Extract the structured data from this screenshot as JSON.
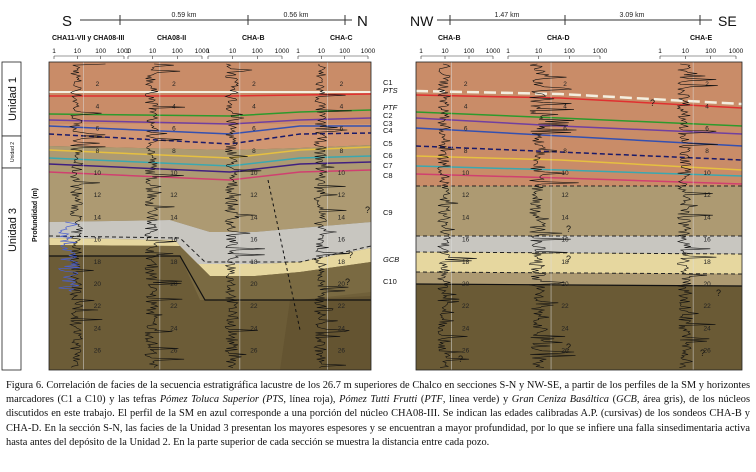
{
  "panels": {
    "sn": {
      "dir_left": "S",
      "dir_right": "N",
      "distances": [
        "0.59 km",
        "0.56 km"
      ],
      "wells": [
        "CHA11-VII y CHA08-III",
        "CHA08-II",
        "CHA-B",
        "CHA-C"
      ]
    },
    "nwse": {
      "dir_left": "NW",
      "dir_right": "SE",
      "distances": [
        "1.47 km",
        "3.09 km"
      ],
      "wells": [
        "CHA-B",
        "CHA-D",
        "CHA-E"
      ]
    }
  },
  "ms_scale_ticks": [
    "1",
    "10",
    "100",
    "1000"
  ],
  "depth_ticks": [
    "2",
    "4",
    "6",
    "8",
    "10",
    "12",
    "14",
    "16",
    "18",
    "20",
    "22",
    "24",
    "26"
  ],
  "units": {
    "unidad1": "Unidad 1",
    "unidad2": "Unidad 2",
    "unidad3": "Unidad 3",
    "depth_axis": "Profundidad (m)"
  },
  "marker_labels": [
    "C1",
    "PTS",
    "PTF",
    "C2",
    "C3",
    "C4",
    "C5",
    "C6",
    "C7",
    "C8",
    "C9",
    "GCB",
    "C10"
  ],
  "question_mark": "?",
  "colors": {
    "unit1": "#c98c68",
    "unit2": "#d19672",
    "unit3_light": "#ad9a72",
    "unit3_dark": "#70603a",
    "yellow": "#e6d79f",
    "grey": "#c8c6c0",
    "pts_line": "#e03030",
    "ptf_line": "#2d9a2d",
    "white_line": "#f4efe0",
    "ms_trace": "#111111",
    "ms_blue": "#4a5fd0"
  },
  "caption": {
    "p1": "Figura 6. Correlación de facies de la secuencia estratigráfica lacustre de los 26.7 m superiores de Chalco en secciones S-N y NW-SE, a partir de los perfiles de la SM y horizontes marcadores (C1 a C10) y las tefras ",
    "i1": "Pómez Toluca Superior (PTS",
    "p2": ", línea roja), ",
    "i2": "Pómez Tutti Frutti",
    "p3": " (",
    "i3": "PTF",
    "p4": ", línea verde) y ",
    "i4": "Gran Ceniza Basáltica",
    "p5": " (",
    "i5": "GCB",
    "p6": ", área gris), de los núcleos discutidos en este trabajo. El perfil de la SM en azul corresponde a una porción del núcleo CHA08-III. Se indican las edades calibradas A.P. (cursivas) de los sondeos CHA-B y CHA-D. En la sección S-N, las facies de la Unidad 3 presentan los mayores espesores y se encuentran a mayor profundidad, por lo que se infiere una falla sinsedimentaria activa hasta antes del depósito de la Unidad 2. En la parte superior de cada sección se muestra la distancia entre cada pozo."
  }
}
